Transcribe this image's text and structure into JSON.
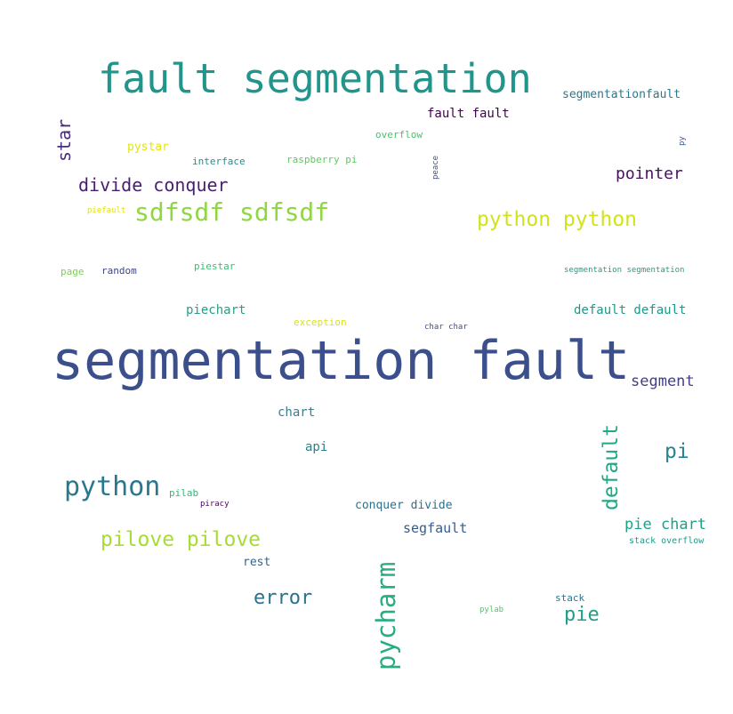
{
  "words": [
    {
      "text": "segmentation fault",
      "color": "#3b4f8c",
      "orientation": "horizontal"
    },
    {
      "text": "fault segmentation",
      "color": "#21958b",
      "orientation": "horizontal"
    },
    {
      "text": "sdfsdf sdfsdf",
      "color": "#90d743",
      "orientation": "horizontal"
    },
    {
      "text": "python python",
      "color": "#d2e21b",
      "orientation": "horizontal"
    },
    {
      "text": "divide conquer",
      "color": "#481f70",
      "orientation": "horizontal"
    },
    {
      "text": "pointer",
      "color": "#46115e",
      "orientation": "horizontal"
    },
    {
      "text": "python",
      "color": "#2a788e",
      "orientation": "horizontal"
    },
    {
      "text": "pilove pilove",
      "color": "#a8db34",
      "orientation": "horizontal"
    },
    {
      "text": "default",
      "color": "#22a884",
      "orientation": "vertical"
    },
    {
      "text": "pycharm",
      "color": "#27ad81",
      "orientation": "vertical"
    },
    {
      "text": "star",
      "color": "#472d7b",
      "orientation": "vertical"
    },
    {
      "text": "error",
      "color": "#2c728e",
      "orientation": "horizontal"
    },
    {
      "text": "pie",
      "color": "#1f9e89",
      "orientation": "horizontal"
    },
    {
      "text": "pi",
      "color": "#25858e",
      "orientation": "horizontal"
    },
    {
      "text": "segment",
      "color": "#433e85",
      "orientation": "horizontal"
    },
    {
      "text": "pie chart",
      "color": "#1fa187",
      "orientation": "horizontal"
    },
    {
      "text": "default default",
      "color": "#1f988b",
      "orientation": "horizontal"
    },
    {
      "text": "piechart",
      "color": "#2a9d8a",
      "orientation": "horizontal"
    },
    {
      "text": "segfault",
      "color": "#365c8d",
      "orientation": "horizontal"
    },
    {
      "text": "chart",
      "color": "#3e7d8e",
      "orientation": "horizontal"
    },
    {
      "text": "api",
      "color": "#26828e",
      "orientation": "horizontal"
    },
    {
      "text": "conquer divide",
      "color": "#2c718e",
      "orientation": "horizontal"
    },
    {
      "text": "rest",
      "color": "#31668e",
      "orientation": "horizontal"
    },
    {
      "text": "fault fault",
      "color": "#440154",
      "orientation": "horizontal"
    },
    {
      "text": "segmentationfault",
      "color": "#2a788e",
      "orientation": "horizontal"
    },
    {
      "text": "pystar",
      "color": "#e2e418",
      "orientation": "horizontal"
    },
    {
      "text": "interface",
      "color": "#2d8a8c",
      "orientation": "horizontal"
    },
    {
      "text": "raspberry pi",
      "color": "#5ec962",
      "orientation": "horizontal"
    },
    {
      "text": "overflow",
      "color": "#4ac16d",
      "orientation": "horizontal"
    },
    {
      "text": "peace",
      "color": "#3b528b",
      "orientation": "vertical"
    },
    {
      "text": "py",
      "color": "#39568c",
      "orientation": "vertical"
    },
    {
      "text": "piefault",
      "color": "#dfe318",
      "orientation": "horizontal"
    },
    {
      "text": "page",
      "color": "#7ad151",
      "orientation": "horizontal"
    },
    {
      "text": "random",
      "color": "#404688",
      "orientation": "horizontal"
    },
    {
      "text": "piestar",
      "color": "#3fbc73",
      "orientation": "horizontal"
    },
    {
      "text": "segmentation segmentation",
      "color": "#1fa088",
      "orientation": "horizontal"
    },
    {
      "text": "exception",
      "color": "#d8e219",
      "orientation": "horizontal"
    },
    {
      "text": "char char",
      "color": "#3d4e8a",
      "orientation": "horizontal"
    },
    {
      "text": "pilab",
      "color": "#35b779",
      "orientation": "horizontal"
    },
    {
      "text": "piracy",
      "color": "#450559",
      "orientation": "horizontal"
    },
    {
      "text": "stack overflow",
      "color": "#1e9b8a",
      "orientation": "horizontal"
    },
    {
      "text": "stack",
      "color": "#2c728e",
      "orientation": "horizontal"
    },
    {
      "text": "pylab",
      "color": "#52c569",
      "orientation": "horizontal"
    }
  ]
}
